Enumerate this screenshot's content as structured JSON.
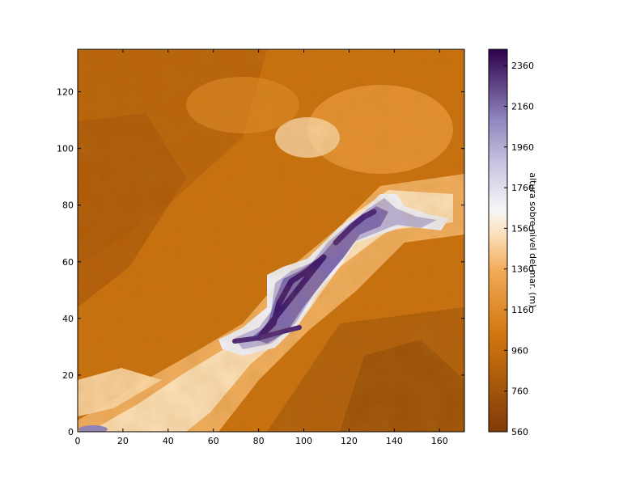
{
  "chart_data": {
    "type": "heatmap",
    "title": "",
    "xlabel": "",
    "ylabel": "",
    "xlim": [
      0,
      171
    ],
    "ylim": [
      0,
      135
    ],
    "xticks": [
      "0",
      "20",
      "40",
      "60",
      "80",
      "100",
      "120",
      "140",
      "160"
    ],
    "yticks": [
      "0",
      "20",
      "40",
      "60",
      "80",
      "100",
      "120"
    ],
    "colormap": "PuOr",
    "colorbar": {
      "label": "altura sobre nivel del mar. (m)",
      "range": [
        560,
        2440
      ],
      "ticks": [
        "560",
        "760",
        "960",
        "1160",
        "1360",
        "1560",
        "1760",
        "1960",
        "2160",
        "2360"
      ]
    },
    "description_of_field": "digital elevation model; a high ridge runs diagonally from lower-left to upper-right with peaks above 2200 m",
    "colors": {
      "low": "#7f3b08",
      "mid_low": "#e08214",
      "mid": "#f7f7f7",
      "mid_high": "#b2abd2",
      "high": "#2d004b"
    }
  }
}
